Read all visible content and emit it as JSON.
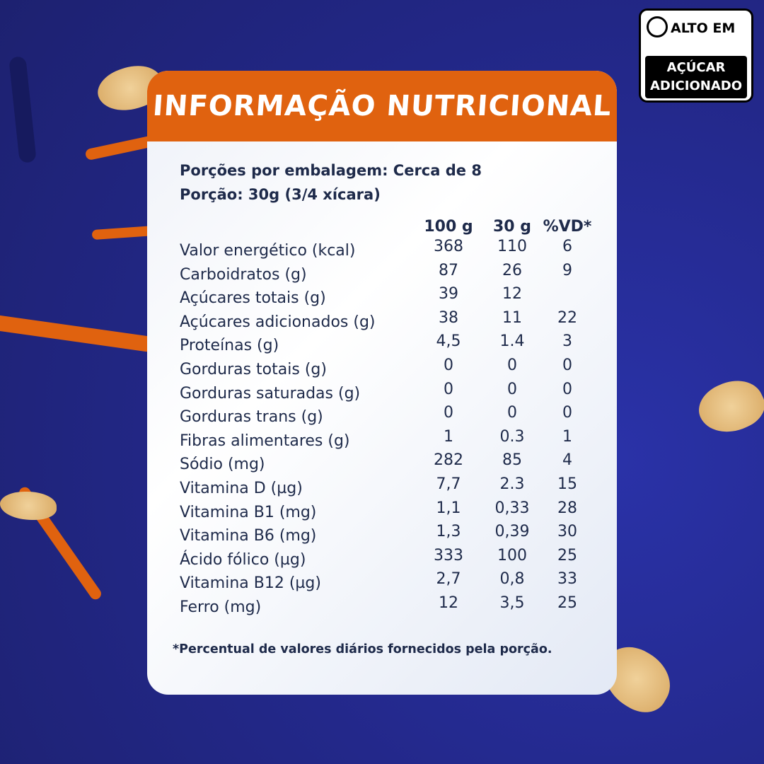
{
  "title": "INFORMAÇÃO NUTRICIONAL",
  "servings_per_package": "Porções por embalagem: Cerca de 8",
  "serving_size": "Porção: 30g (3/4 xícara)",
  "columns": [
    "100 g",
    "30 g",
    "%VD*"
  ],
  "rows": [
    {
      "name": "Valor energético (kcal)",
      "per100": "368",
      "per30": "110",
      "vd": "6"
    },
    {
      "name": "Carboidratos (g)",
      "per100": "87",
      "per30": "26",
      "vd": "9"
    },
    {
      "name": "Açúcares totais (g)",
      "per100": "39",
      "per30": "12",
      "vd": ""
    },
    {
      "name": "Açúcares adicionados (g)",
      "per100": "38",
      "per30": "11",
      "vd": "22"
    },
    {
      "name": "Proteínas (g)",
      "per100": "4,5",
      "per30": "1.4",
      "vd": "3"
    },
    {
      "name": "Gorduras totais (g)",
      "per100": "0",
      "per30": "0",
      "vd": "0"
    },
    {
      "name": "Gorduras saturadas (g)",
      "per100": "0",
      "per30": "0",
      "vd": "0"
    },
    {
      "name": "Gorduras trans (g)",
      "per100": "0",
      "per30": "0",
      "vd": "0"
    },
    {
      "name": "Fibras alimentares (g)",
      "per100": "1",
      "per30": "0.3",
      "vd": "1"
    },
    {
      "name": "Sódio (mg)",
      "per100": "282",
      "per30": "85",
      "vd": "4"
    },
    {
      "name": "Vitamina D (µg)",
      "per100": "7,7",
      "per30": "2.3",
      "vd": "15"
    },
    {
      "name": "Vitamina B1 (mg)",
      "per100": "1,1",
      "per30": "0,33",
      "vd": "28"
    },
    {
      "name": "Vitamina B6 (mg)",
      "per100": "1,3",
      "per30": "0,39",
      "vd": "30"
    },
    {
      "name": "Ácido fólico (µg)",
      "per100": "333",
      "per30": "100",
      "vd": "25"
    },
    {
      "name": "Vitamina B12 (µg)",
      "per100": "2,7",
      "per30": "0,8",
      "vd": "33"
    },
    {
      "name": "Ferro (mg)",
      "per100": "12",
      "per30": "3,5",
      "vd": "25"
    }
  ],
  "footnote": "*Percentual de valores diários fornecidos pela porção.",
  "badge": {
    "line1": "ALTO EM",
    "line2": "AÇÚCAR",
    "line3": "ADICIONADO",
    "icon": "magnifier-icon"
  },
  "colors": {
    "background": "#262a8e",
    "header": "#e0620f",
    "text": "#1e2a4a"
  }
}
